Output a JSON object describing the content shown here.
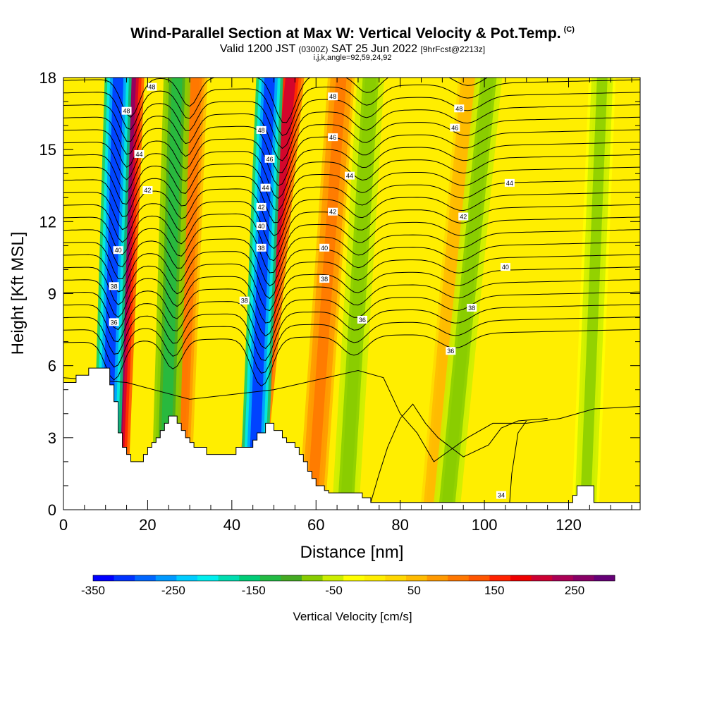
{
  "header": {
    "title": "Wind-Parallel Section at Max W: Vertical Velocity & Pot.Temp.",
    "copyright": "(C)",
    "valid_prefix": "Valid 1200 JST",
    "valid_utc": "(0300Z)",
    "valid_date": "SAT 25 Jun 2022",
    "forecast_info": "[9hrFcst@2213z]",
    "params": "i,j,k,angle=92,59,24,92"
  },
  "chart_data": {
    "type": "heatmap",
    "xlabel": "Distance [nm]",
    "ylabel": "Height [Kft MSL]",
    "xlim": [
      0,
      137
    ],
    "ylim": [
      0,
      18
    ],
    "x_ticks": [
      0,
      20,
      40,
      60,
      80,
      100,
      120
    ],
    "y_ticks": [
      0,
      3,
      6,
      9,
      12,
      15,
      18
    ],
    "colorbar": {
      "title": "Vertical Velocity [cm/s]",
      "range": [
        -350,
        300
      ],
      "tick_labels": [
        "-350",
        "-250",
        "-150",
        "-50",
        "50",
        "150",
        "250"
      ],
      "tick_values": [
        -350,
        -250,
        -150,
        -50,
        50,
        150,
        250
      ],
      "colors": [
        "#0000ff",
        "#0033ff",
        "#0066ff",
        "#0099ff",
        "#00ccff",
        "#00eeee",
        "#00ddb0",
        "#00cc77",
        "#22bb44",
        "#44aa22",
        "#88cc00",
        "#ccee00",
        "#ffff00",
        "#ffee00",
        "#ffd700",
        "#ffbb00",
        "#ff9900",
        "#ff7700",
        "#ff5500",
        "#ff2200",
        "#ee0000",
        "#cc0033",
        "#aa0055",
        "#880066",
        "#660077"
      ]
    },
    "background_color": "#ffee00",
    "updraft_bands": [
      {
        "x_bottom": 12,
        "x_top": 16,
        "peak": 250
      },
      {
        "x_bottom": 27,
        "x_top": 31,
        "peak": 110
      },
      {
        "x_bottom": 44,
        "x_top": 54,
        "peak": 200
      },
      {
        "x_bottom": 59,
        "x_top": 66,
        "peak": 100
      },
      {
        "x_bottom": 88,
        "x_top": 97,
        "peak": 60
      }
    ],
    "downdraft_bands": [
      {
        "x_bottom": 10,
        "x_top": 13,
        "peak": -300
      },
      {
        "x_bottom": 24,
        "x_top": 27,
        "peak": -130
      },
      {
        "x_bottom": 45,
        "x_top": 49,
        "peak": -320
      },
      {
        "x_bottom": 67,
        "x_top": 73,
        "peak": -80
      },
      {
        "x_bottom": 91,
        "x_top": 101,
        "peak": -90
      },
      {
        "x_bottom": 124,
        "x_top": 128,
        "peak": -70
      }
    ],
    "terrain": {
      "x": [
        0,
        2,
        3,
        6,
        10,
        11,
        12,
        13,
        14,
        15,
        16,
        18,
        19,
        20,
        21,
        22,
        23,
        24,
        25,
        26,
        27,
        28,
        29,
        30,
        31,
        34,
        40,
        41,
        45,
        46,
        48,
        50,
        52,
        53,
        55,
        56,
        57,
        58,
        59,
        60,
        62,
        63,
        70,
        71,
        73,
        74,
        75,
        80,
        120,
        121,
        122,
        125,
        126,
        130,
        137
      ],
      "height": [
        5.3,
        5.3,
        5.6,
        5.9,
        5.9,
        5.2,
        4.5,
        3.2,
        2.6,
        2.3,
        2.0,
        2.0,
        2.3,
        2.6,
        2.8,
        3.0,
        3.3,
        3.6,
        3.9,
        3.9,
        3.6,
        3.3,
        3.0,
        2.8,
        2.6,
        2.3,
        2.3,
        2.6,
        2.9,
        3.2,
        3.6,
        3.3,
        3.0,
        2.8,
        2.6,
        2.3,
        2.0,
        1.6,
        1.3,
        1.0,
        0.8,
        0.7,
        0.7,
        0.5,
        0.3,
        0.3,
        0.3,
        0.3,
        0.3,
        0.6,
        1.0,
        1.0,
        0.3,
        0.3,
        0.3
      ]
    },
    "theta_contours": {
      "label_values": [
        "34",
        "36",
        "38",
        "40",
        "42",
        "44",
        "46",
        "48"
      ],
      "labels": [
        {
          "text": "48",
          "x": 21,
          "y": 17.6
        },
        {
          "text": "48",
          "x": 15,
          "y": 16.6
        },
        {
          "text": "44",
          "x": 18,
          "y": 14.8
        },
        {
          "text": "42",
          "x": 20,
          "y": 13.3
        },
        {
          "text": "40",
          "x": 13,
          "y": 10.8
        },
        {
          "text": "38",
          "x": 12,
          "y": 9.3
        },
        {
          "text": "36",
          "x": 12,
          "y": 7.8
        },
        {
          "text": "48",
          "x": 64,
          "y": 17.2
        },
        {
          "text": "46",
          "x": 64,
          "y": 15.5
        },
        {
          "text": "44",
          "x": 68,
          "y": 13.9
        },
        {
          "text": "42",
          "x": 64,
          "y": 12.4
        },
        {
          "text": "40",
          "x": 62,
          "y": 10.9
        },
        {
          "text": "38",
          "x": 62,
          "y": 9.6
        },
        {
          "text": "36",
          "x": 71,
          "y": 7.9
        },
        {
          "text": "38",
          "x": 43,
          "y": 8.7
        },
        {
          "text": "48",
          "x": 47,
          "y": 15.8
        },
        {
          "text": "46",
          "x": 49,
          "y": 14.6
        },
        {
          "text": "44",
          "x": 48,
          "y": 13.4
        },
        {
          "text": "42",
          "x": 47,
          "y": 12.6
        },
        {
          "text": "40",
          "x": 47,
          "y": 11.8
        },
        {
          "text": "38",
          "x": 47,
          "y": 10.9
        },
        {
          "text": "48",
          "x": 94,
          "y": 16.7
        },
        {
          "text": "46",
          "x": 93,
          "y": 15.9
        },
        {
          "text": "44",
          "x": 106,
          "y": 13.6
        },
        {
          "text": "42",
          "x": 95,
          "y": 12.2
        },
        {
          "text": "40",
          "x": 105,
          "y": 10.1
        },
        {
          "text": "38",
          "x": 97,
          "y": 8.4
        },
        {
          "text": "36",
          "x": 92,
          "y": 6.6
        },
        {
          "text": "34",
          "x": 104,
          "y": 0.6
        }
      ]
    }
  }
}
